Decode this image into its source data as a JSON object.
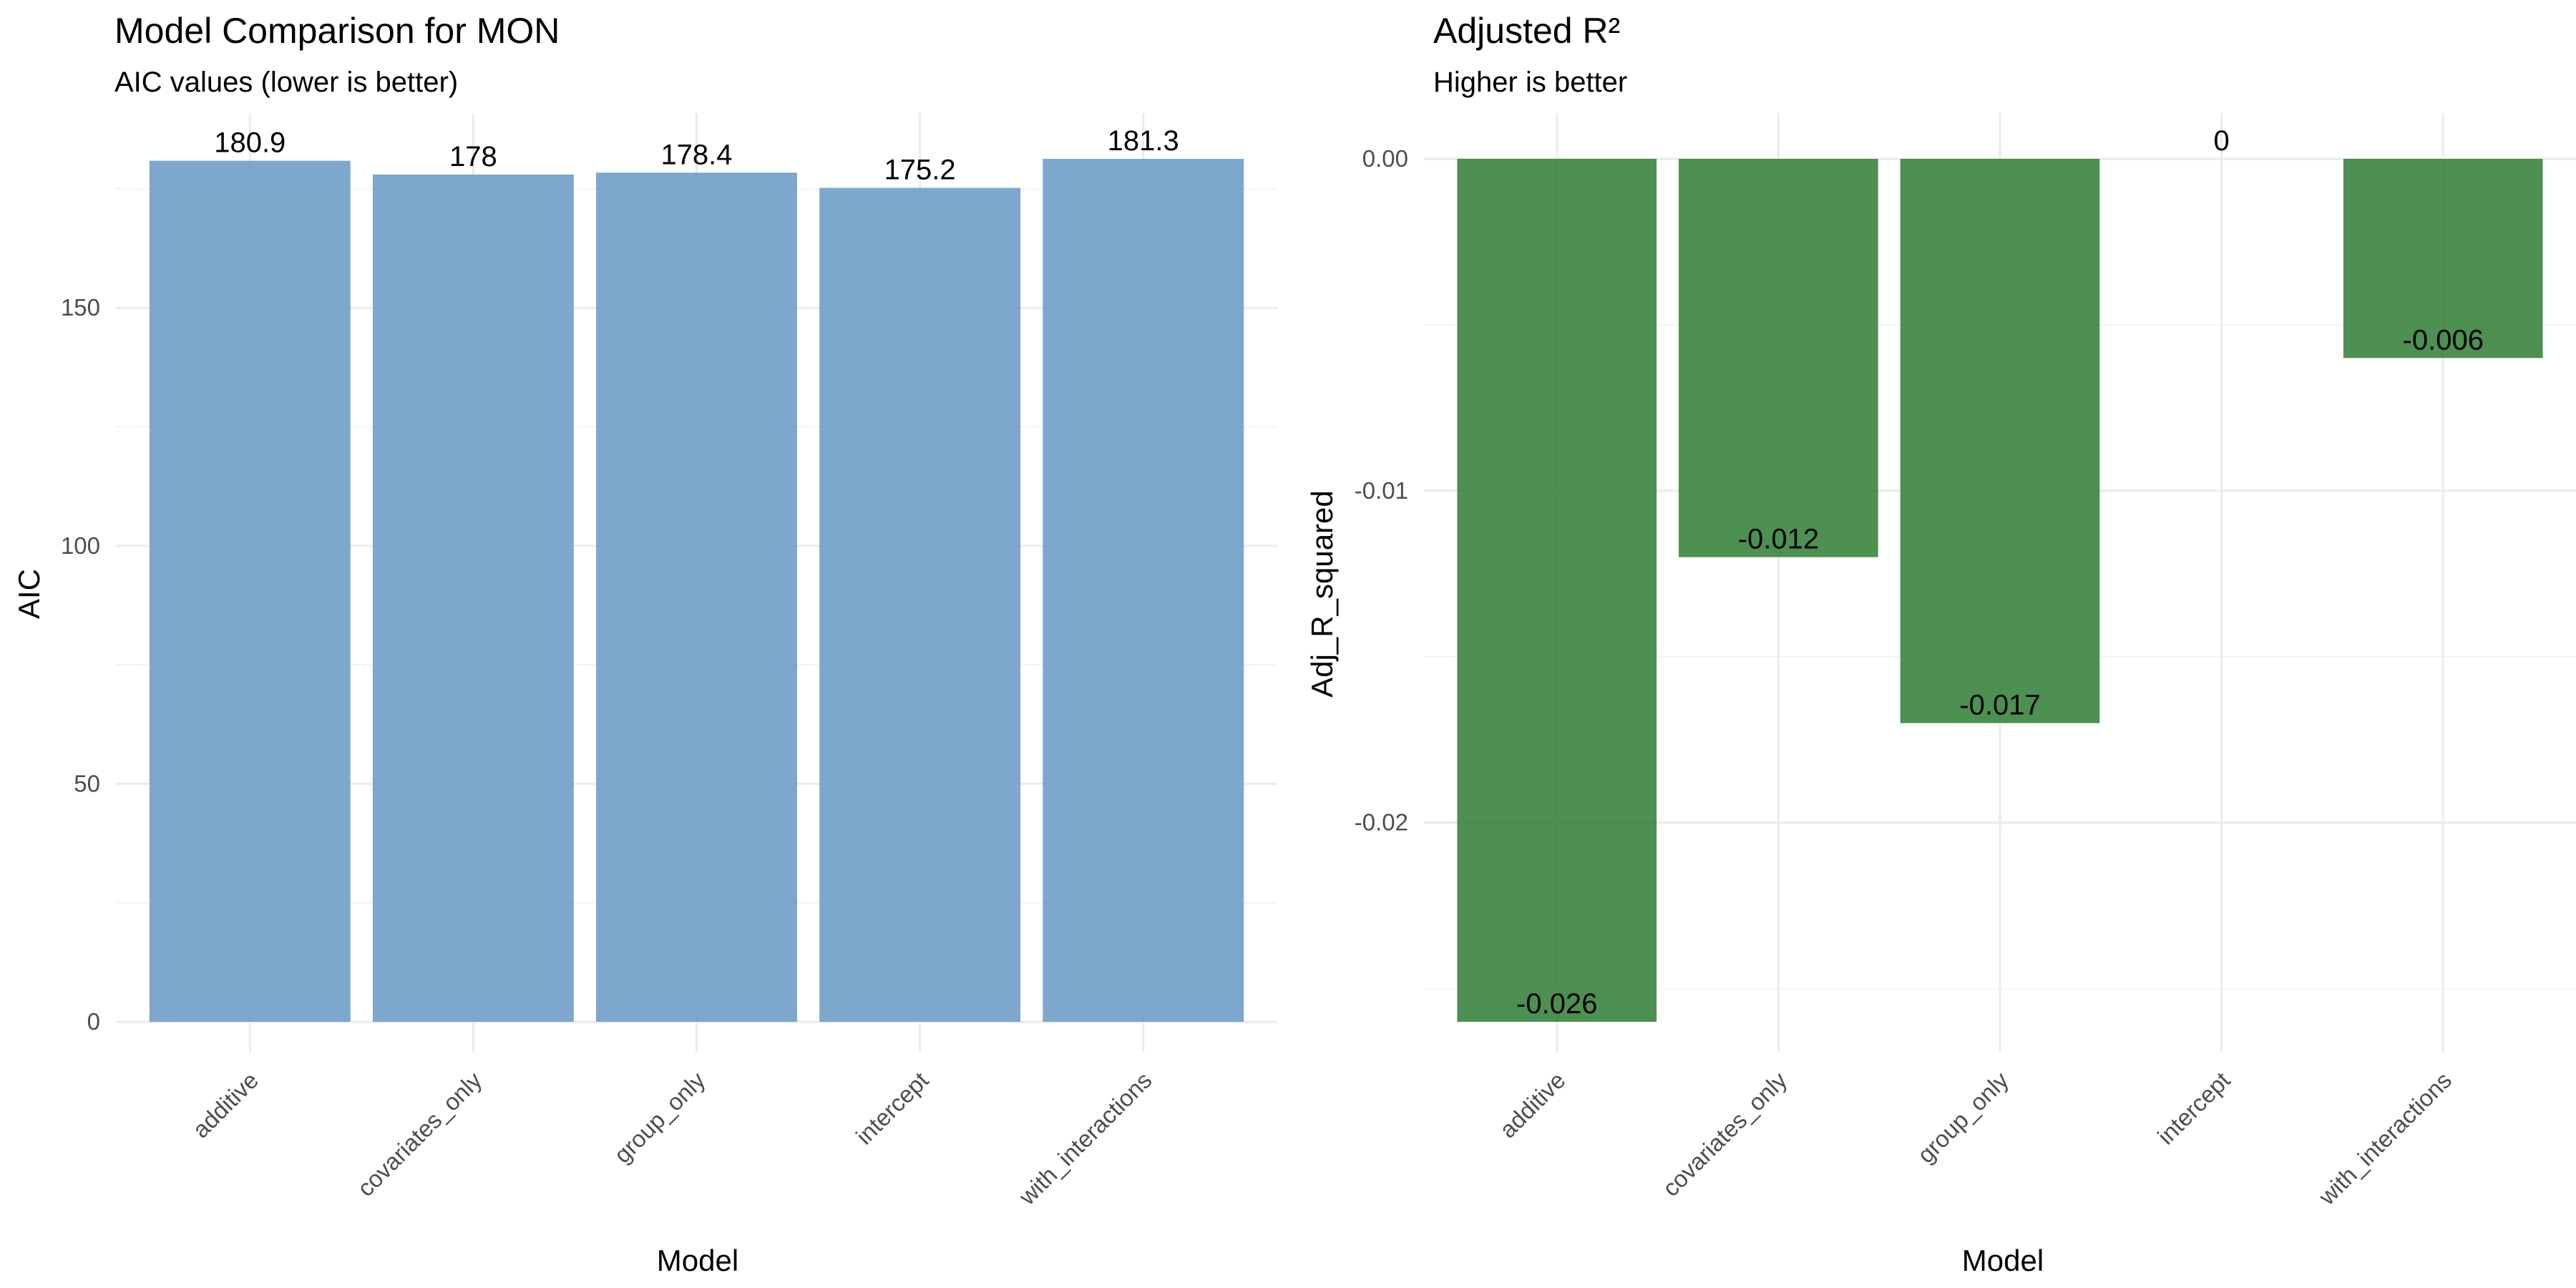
{
  "chart_data": [
    {
      "type": "bar",
      "title": "Model Comparison for MON",
      "subtitle": "AIC values (lower is better)",
      "xlabel": "Model",
      "ylabel": "AIC",
      "categories": [
        "additive",
        "covariates_only",
        "group_only",
        "intercept",
        "with_interactions"
      ],
      "values": [
        180.9,
        178,
        178.4,
        175.2,
        181.3
      ],
      "data_labels": [
        "180.9",
        "178",
        "178.4",
        "175.2",
        "181.3"
      ],
      "ylim": [
        0,
        181.3
      ],
      "yticks": [
        0,
        50,
        100,
        150
      ],
      "ytick_labels": [
        "0",
        "50",
        "100",
        "150"
      ],
      "minor_yticks": [
        25,
        75,
        125,
        175
      ],
      "bar_color": "#6b9bc6",
      "grid": true,
      "legend": "none"
    },
    {
      "type": "bar",
      "title": "Adjusted R²",
      "subtitle": "Higher is better",
      "xlabel": "Model",
      "ylabel": "Adj_R_squared",
      "categories": [
        "additive",
        "covariates_only",
        "group_only",
        "intercept",
        "with_interactions"
      ],
      "values": [
        -0.026,
        -0.012,
        -0.017,
        0,
        -0.006
      ],
      "data_labels": [
        "-0.026",
        "-0.012",
        "-0.017",
        "0",
        "-0.006"
      ],
      "ylim": [
        -0.026,
        0
      ],
      "yticks": [
        -0.02,
        -0.01,
        0
      ],
      "ytick_labels": [
        "-0.02",
        "-0.01",
        "0.00"
      ],
      "minor_yticks": [
        -0.025,
        -0.015,
        -0.005
      ],
      "bar_color": "#2e7d32",
      "grid": true,
      "legend": "none"
    }
  ]
}
